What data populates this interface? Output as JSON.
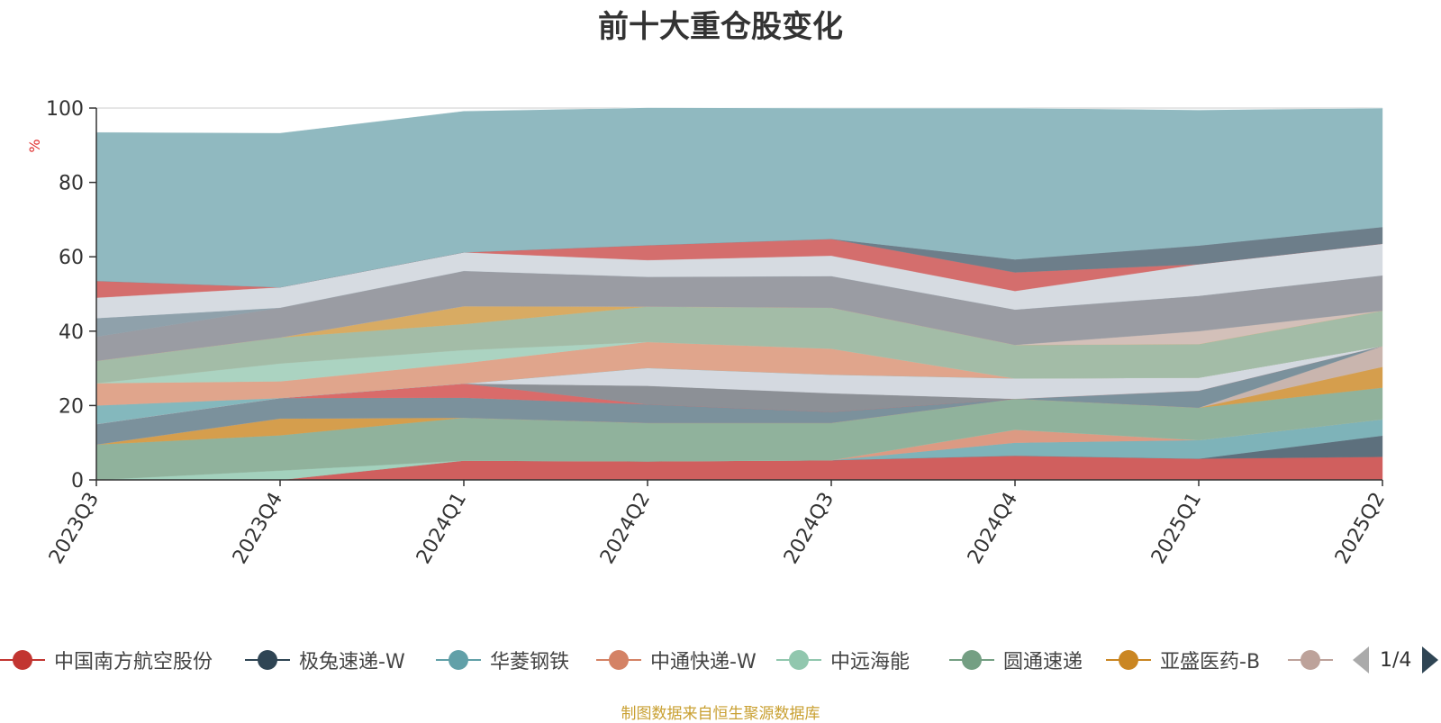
{
  "title": "前十大重仓股变化",
  "footer": "制图数据来自恒生聚源数据库",
  "legend": {
    "items": [
      {
        "label": "中国南方航空股份",
        "color": "#c23531"
      },
      {
        "label": "极兔速递-W",
        "color": "#2f4554"
      },
      {
        "label": "华菱钢铁",
        "color": "#61a0a8"
      },
      {
        "label": "中通快递-W",
        "color": "#d48265"
      },
      {
        "label": "中远海能",
        "color": "#91c7ae"
      },
      {
        "label": "圆通速递",
        "color": "#749f83"
      },
      {
        "label": "亚盛医药-B",
        "color": "#ca8622"
      },
      {
        "label": "",
        "color": "#bda29a"
      }
    ],
    "page": "1/4"
  },
  "chart_data": {
    "type": "area",
    "stacked": true,
    "ylabel": "%",
    "ylim": [
      0,
      100
    ],
    "yticks": [
      0,
      20,
      40,
      60,
      80,
      100
    ],
    "categories": [
      "2023Q3",
      "2023Q4",
      "2024Q1",
      "2024Q2",
      "2024Q3",
      "2024Q4",
      "2025Q1",
      "2025Q2"
    ],
    "grid": true,
    "legend_position": "bottom",
    "series": [
      {
        "color": "#d05f5e",
        "values": [
          0.0,
          0.0,
          5.2,
          5.0,
          5.3,
          6.5,
          5.7,
          6.2
        ]
      },
      {
        "color": "#5d707d",
        "values": [
          0.0,
          0.0,
          0.0,
          0.0,
          0.0,
          0.0,
          0.0,
          5.7
        ]
      },
      {
        "color": "#7eb3b9",
        "values": [
          0.0,
          0.0,
          0.0,
          0.0,
          0.0,
          3.5,
          5.0,
          4.4
        ]
      },
      {
        "color": "#dc9a83",
        "values": [
          0.0,
          0.0,
          0.0,
          0.0,
          0.0,
          3.5,
          0.0,
          0.0
        ]
      },
      {
        "color": "#a3d1bd",
        "values": [
          0.0,
          2.5,
          0.0,
          0.0,
          0.0,
          0.0,
          0.0,
          0.0
        ]
      },
      {
        "color": "#90b29c",
        "values": [
          9.5,
          9.5,
          11.5,
          10.3,
          10.0,
          8.3,
          8.7,
          8.5
        ]
      },
      {
        "color": "#d59e4d",
        "values": [
          0.0,
          4.5,
          0.0,
          0.0,
          0.0,
          0.0,
          0.0,
          5.6
        ]
      },
      {
        "color": "#c9b5ae",
        "values": [
          0.0,
          0.0,
          0.0,
          0.0,
          0.0,
          0.0,
          0.0,
          5.6
        ]
      },
      {
        "color": "#7b919c",
        "values": [
          5.5,
          5.5,
          5.4,
          5.0,
          3.0,
          0.0,
          4.6,
          0.0
        ]
      },
      {
        "color": "#d96b6a",
        "values": [
          0.0,
          0.0,
          3.8,
          0.0,
          0.0,
          0.0,
          0.0,
          0.0
        ]
      },
      {
        "color": "#8c9096",
        "values": [
          0.0,
          0.0,
          0.0,
          5.0,
          5.0,
          0.0,
          0.0,
          0.0
        ]
      },
      {
        "color": "#d4d9e0",
        "values": [
          0.0,
          0.0,
          0.0,
          4.8,
          5.0,
          5.5,
          3.5,
          0.0
        ]
      },
      {
        "color": "#84b8bd",
        "values": [
          5.0,
          0.0,
          0.0,
          0.0,
          0.0,
          0.0,
          0.0,
          0.0
        ]
      },
      {
        "color": "#e0a58c",
        "values": [
          6.0,
          4.5,
          5.5,
          7.0,
          7.0,
          0.0,
          0.0,
          0.0
        ]
      },
      {
        "color": "#abd3c1",
        "values": [
          0.0,
          4.8,
          3.5,
          0.0,
          0.0,
          0.0,
          0.0,
          0.0
        ]
      },
      {
        "color": "#a3bca7",
        "values": [
          6.0,
          7.0,
          7.0,
          9.5,
          11.0,
          9.0,
          9.0,
          9.5
        ]
      },
      {
        "color": "#d8ab63",
        "values": [
          0.0,
          0.0,
          4.8,
          0.0,
          0.0,
          0.0,
          0.0,
          0.0
        ]
      },
      {
        "color": "#d3c0b9",
        "values": [
          0.0,
          0.0,
          0.0,
          0.0,
          0.0,
          0.0,
          3.5,
          0.0
        ]
      },
      {
        "color": "#9a9ca3",
        "values": [
          6.5,
          8.0,
          9.5,
          8.0,
          8.5,
          9.5,
          9.5,
          9.5
        ]
      },
      {
        "color": "#8fa1ab",
        "values": [
          5.0,
          0.0,
          0.0,
          0.0,
          0.0,
          0.0,
          0.0,
          0.0
        ]
      },
      {
        "color": "#d6dbe1",
        "values": [
          5.5,
          5.5,
          5.0,
          4.5,
          5.5,
          5.0,
          8.5,
          8.5
        ]
      },
      {
        "color": "#d46e6d",
        "values": [
          4.5,
          0.0,
          0.0,
          4.0,
          4.5,
          5.0,
          0.0,
          0.0
        ]
      },
      {
        "color": "#6d7e8a",
        "values": [
          0.0,
          0.0,
          0.0,
          0.0,
          0.0,
          3.5,
          5.0,
          4.5
        ]
      },
      {
        "color": "#90b9c0",
        "values": [
          40.0,
          41.5,
          38.0,
          37.0,
          35.2,
          40.7,
          36.5,
          32.0
        ]
      },
      {
        "color": "#ffffff",
        "values": [
          0.0,
          2.0,
          0.0,
          0.0,
          0.0,
          0.0,
          0.0,
          0.0
        ]
      }
    ]
  }
}
